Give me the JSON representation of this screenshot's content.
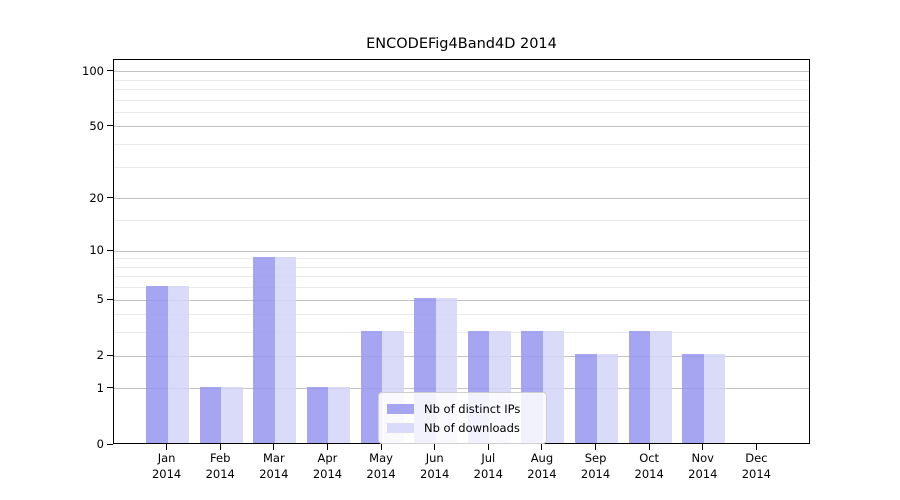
{
  "chart_data": {
    "type": "bar",
    "title": "ENCODEFig4Band4D 2014",
    "xlabel": "",
    "ylabel": "",
    "year": "2014",
    "months": [
      "Jan",
      "Feb",
      "Mar",
      "Apr",
      "May",
      "Jun",
      "Jul",
      "Aug",
      "Sep",
      "Oct",
      "Nov",
      "Dec"
    ],
    "categories": [
      "Jan 2014",
      "Feb 2014",
      "Mar 2014",
      "Apr 2014",
      "May 2014",
      "Jun 2014",
      "Jul 2014",
      "Aug 2014",
      "Sep 2014",
      "Oct 2014",
      "Nov 2014",
      "Dec 2014"
    ],
    "series": [
      {
        "name": "Nb of distinct IPs",
        "fill": "#9595f0",
        "swatch": "#a5a5f2",
        "values": [
          6,
          1,
          9,
          1,
          3,
          5,
          3,
          3,
          2,
          3,
          2,
          0
        ]
      },
      {
        "name": "Nb of downloads",
        "fill": "#d3d3f8",
        "swatch": "#dadaf9",
        "values": [
          6,
          1,
          9,
          1,
          3,
          5,
          3,
          3,
          2,
          3,
          2,
          0
        ]
      }
    ],
    "y_scale": "log10(1+v)",
    "ylim": [
      0,
      114
    ],
    "y_ticks": [
      0,
      1,
      2,
      5,
      10,
      20,
      50,
      100
    ],
    "y_minor_ticks": [
      3,
      4,
      6,
      7,
      8,
      9,
      15,
      30,
      40,
      60,
      70,
      80,
      90
    ],
    "grid": "horizontal",
    "legend_position": "inside-bottom-center"
  },
  "colors": {
    "bar_dark": "#a5a5f2",
    "bar_light": "#dadaf9",
    "grid_minor": "#eaeaea",
    "grid_major": "#c4c4c4",
    "axis": "#000000",
    "legend_border": "#cfcfcf"
  }
}
